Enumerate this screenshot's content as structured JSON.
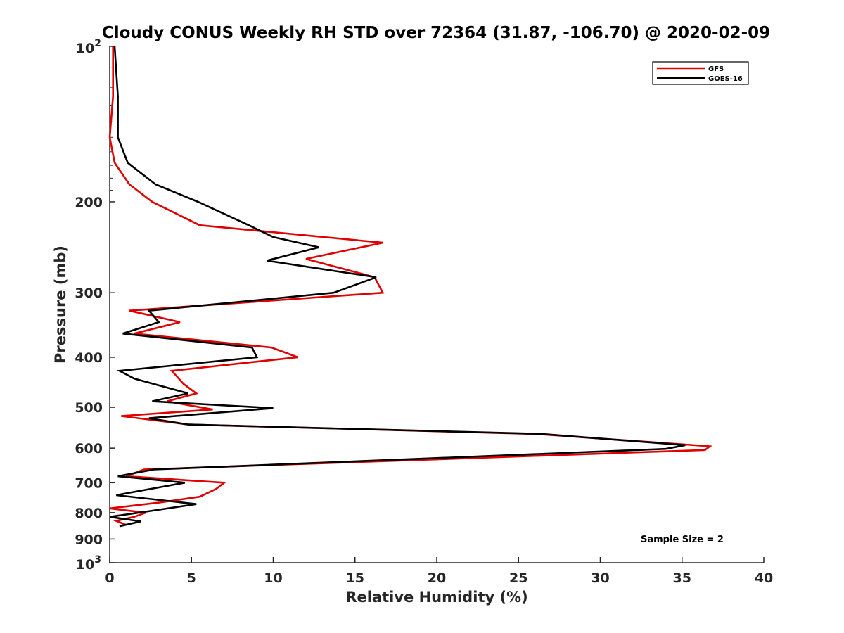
{
  "chart_data": {
    "type": "line",
    "title": "Cloudy CONUS Weekly RH STD over 72364 (31.87, -106.70) @ 2020-02-09",
    "xlabel": "Relative Humidity (%)",
    "ylabel": "Pressure (mb)",
    "xlim": [
      0,
      40
    ],
    "ylim": [
      100,
      1000
    ],
    "y_scale": "log",
    "y_reversed": true,
    "x_ticks": [
      0,
      5,
      10,
      15,
      20,
      25,
      30,
      35,
      40
    ],
    "y_tick_labels": [
      {
        "value": 200,
        "label": "200"
      },
      {
        "value": 300,
        "label": "300"
      },
      {
        "value": 400,
        "label": "400"
      },
      {
        "value": 500,
        "label": "500"
      },
      {
        "value": 600,
        "label": "600"
      },
      {
        "value": 700,
        "label": "700"
      },
      {
        "value": 800,
        "label": "800"
      },
      {
        "value": 900,
        "label": "900"
      }
    ],
    "y_end_labels": {
      "top_base": "10",
      "top_exp": "2",
      "bottom_base": "10",
      "bottom_exp": "3"
    },
    "grid": false,
    "legend_position": "top-right",
    "annotation": "Sample Size = 2",
    "series": [
      {
        "name": "GFS",
        "color": "#e00000",
        "points": [
          [
            0.2,
            100
          ],
          [
            0.2,
            125
          ],
          [
            0,
            150
          ],
          [
            0.3,
            168
          ],
          [
            1.2,
            185
          ],
          [
            2.6,
            200
          ],
          [
            5.5,
            222
          ],
          [
            16.7,
            240
          ],
          [
            12,
            258
          ],
          [
            16.2,
            280
          ],
          [
            16.7,
            300
          ],
          [
            1.2,
            325
          ],
          [
            4.3,
            342
          ],
          [
            1.5,
            360
          ],
          [
            9.9,
            383
          ],
          [
            11.5,
            400
          ],
          [
            3.8,
            425
          ],
          [
            4.5,
            450
          ],
          [
            5.3,
            470
          ],
          [
            3.5,
            487
          ],
          [
            6.3,
            505
          ],
          [
            0.7,
            520
          ],
          [
            4.8,
            540
          ],
          [
            26,
            563
          ],
          [
            36.7,
            595
          ],
          [
            36.4,
            605
          ],
          [
            2.1,
            660
          ],
          [
            1,
            680
          ],
          [
            7,
            700
          ],
          [
            6.5,
            720
          ],
          [
            5.5,
            745
          ],
          [
            3,
            765
          ],
          [
            0,
            785
          ],
          [
            2.2,
            800
          ],
          [
            1.5,
            815
          ],
          [
            0.4,
            830
          ],
          [
            1,
            845
          ]
        ]
      },
      {
        "name": "GOES-16",
        "color": "#000000",
        "points": [
          [
            0.3,
            100
          ],
          [
            0.5,
            125
          ],
          [
            0.5,
            150
          ],
          [
            1.1,
            168
          ],
          [
            2.8,
            185
          ],
          [
            5.4,
            200
          ],
          [
            8.5,
            222
          ],
          [
            10,
            234
          ],
          [
            12.8,
            245
          ],
          [
            9.6,
            260
          ],
          [
            16.3,
            280
          ],
          [
            13.7,
            300
          ],
          [
            2.4,
            325
          ],
          [
            3,
            342
          ],
          [
            0.8,
            360
          ],
          [
            8.7,
            383
          ],
          [
            9,
            400
          ],
          [
            0.6,
            425
          ],
          [
            1.5,
            440
          ],
          [
            4.8,
            470
          ],
          [
            2.6,
            487
          ],
          [
            10,
            502
          ],
          [
            2.4,
            525
          ],
          [
            4.8,
            540
          ],
          [
            26.4,
            563
          ],
          [
            35.2,
            592
          ],
          [
            34,
            602
          ],
          [
            2.7,
            660
          ],
          [
            0.5,
            680
          ],
          [
            4.6,
            700
          ],
          [
            0.4,
            740
          ],
          [
            5.3,
            770
          ],
          [
            1.8,
            800
          ],
          [
            0,
            815
          ],
          [
            1.9,
            832
          ],
          [
            0.6,
            850
          ]
        ]
      }
    ]
  }
}
